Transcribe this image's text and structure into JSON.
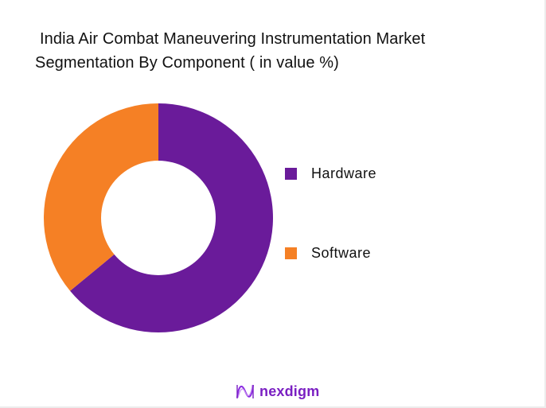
{
  "title": {
    "line1": "India Air Combat Maneuvering Instrumentation Market",
    "line2": "Segmentation By Component ( in value %)"
  },
  "legend": {
    "items": [
      {
        "label": "Hardware",
        "color": "#6a1b9a"
      },
      {
        "label": "Software",
        "color": "#f58025"
      }
    ]
  },
  "branding": {
    "logo_text": "nexdigm",
    "logo_color": "#7a1fc2"
  },
  "chart_data": {
    "type": "pie",
    "subtype": "donut",
    "title": "India Air Combat Maneuvering Instrumentation Market Segmentation By Component ( in value %)",
    "categories": [
      "Hardware",
      "Software"
    ],
    "values": [
      64,
      36
    ],
    "colors": [
      "#6a1b9a",
      "#f58025"
    ],
    "start_angle": "12 o'clock, clockwise",
    "data_labels": false,
    "legend_position": "right"
  }
}
